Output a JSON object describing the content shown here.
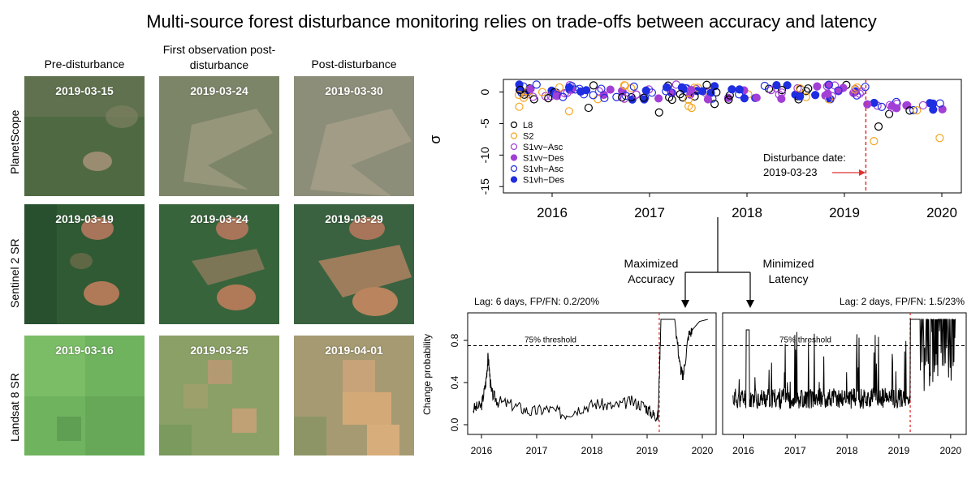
{
  "title": "Multi-source forest disturbance monitoring relies on trade-offs between accuracy and latency",
  "columns": [
    "Pre-disturbance",
    "First observation post-disturbance",
    "Post-disturbance"
  ],
  "rows": [
    {
      "label": "PlanetScope",
      "dates": [
        "2019-03-15",
        "2019-03-24",
        "2019-03-30"
      ],
      "base": [
        "#4f6a43",
        "#7d8569",
        "#8d8e79"
      ]
    },
    {
      "label": "Sentinel 2 SR",
      "dates": [
        "2019-03-19",
        "2019-03-24",
        "2019-03-29"
      ],
      "base": [
        "#2f5a34",
        "#38643c",
        "#3a6240"
      ]
    },
    {
      "label": "Landsat 8 SR",
      "dates": [
        "2019-03-16",
        "2019-03-25",
        "2019-04-01"
      ],
      "base": [
        "#6fb35f",
        "#8ba066",
        "#a69a72"
      ]
    }
  ],
  "flow": {
    "left": "Maximized Accuracy",
    "right": "Minimized Latency"
  },
  "chart_data": [
    {
      "type": "scatter",
      "ylabel": "σ",
      "x_ticks": [
        "2016",
        "2017",
        "2018",
        "2019",
        "2020"
      ],
      "y_ticks": [
        "0",
        "-5",
        "-10",
        "-15"
      ],
      "ylim": [
        -16,
        2
      ],
      "xlim": [
        2015.5,
        2020.2
      ],
      "legend": [
        {
          "name": "L8",
          "color": "#000000",
          "fill": false
        },
        {
          "name": "S2",
          "color": "#f5a623",
          "fill": false
        },
        {
          "name": "S1vv−Asc",
          "color": "#a23fd6",
          "fill": false
        },
        {
          "name": "S1vv−Des",
          "color": "#a23fd6",
          "fill": true
        },
        {
          "name": "S1vh−Asc",
          "color": "#1f2ee0",
          "fill": false
        },
        {
          "name": "S1vh−Des",
          "color": "#1f2ee0",
          "fill": true
        }
      ],
      "annotation": [
        "Disturbance date:",
        "2019-03-23"
      ],
      "disturbance_x": 2019.22
    },
    {
      "type": "line",
      "title": "Lag: 6 days, FP/FN: 0.2/20%",
      "ylabel": "Change probability",
      "threshold_label": "75% threshold",
      "threshold": 0.75,
      "x_ticks": [
        "2016",
        "2017",
        "2018",
        "2019",
        "2020"
      ],
      "y_ticks": [
        "0.0",
        "0.4",
        "0.8"
      ],
      "ylim": [
        0,
        1
      ],
      "xlim": [
        2015.75,
        2020.25
      ],
      "disturbance_x": 2019.22,
      "x": [
        2015.85,
        2016.0,
        2016.08,
        2016.12,
        2016.18,
        2016.3,
        2016.6,
        2016.9,
        2017.2,
        2017.5,
        2017.8,
        2018.1,
        2018.4,
        2018.7,
        2018.95,
        2019.1,
        2019.2,
        2019.25,
        2019.3,
        2019.5,
        2019.6,
        2019.65,
        2019.75,
        2019.85,
        2019.95,
        2020.1
      ],
      "y": [
        0.15,
        0.18,
        0.4,
        0.65,
        0.3,
        0.22,
        0.18,
        0.12,
        0.15,
        0.1,
        0.16,
        0.2,
        0.17,
        0.22,
        0.18,
        0.1,
        0.08,
        1.0,
        1.0,
        1.0,
        0.55,
        0.45,
        0.85,
        0.92,
        0.98,
        1.0
      ]
    },
    {
      "type": "line",
      "title": "Lag: 2 days, FP/FN: 1.5/23%",
      "threshold_label": "75% threshold",
      "threshold": 0.75,
      "x_ticks": [
        "2016",
        "2017",
        "2018",
        "2019",
        "2020"
      ],
      "ylim": [
        0,
        1
      ],
      "xlim": [
        2015.6,
        2020.3
      ],
      "disturbance_x": 2019.22
    }
  ]
}
